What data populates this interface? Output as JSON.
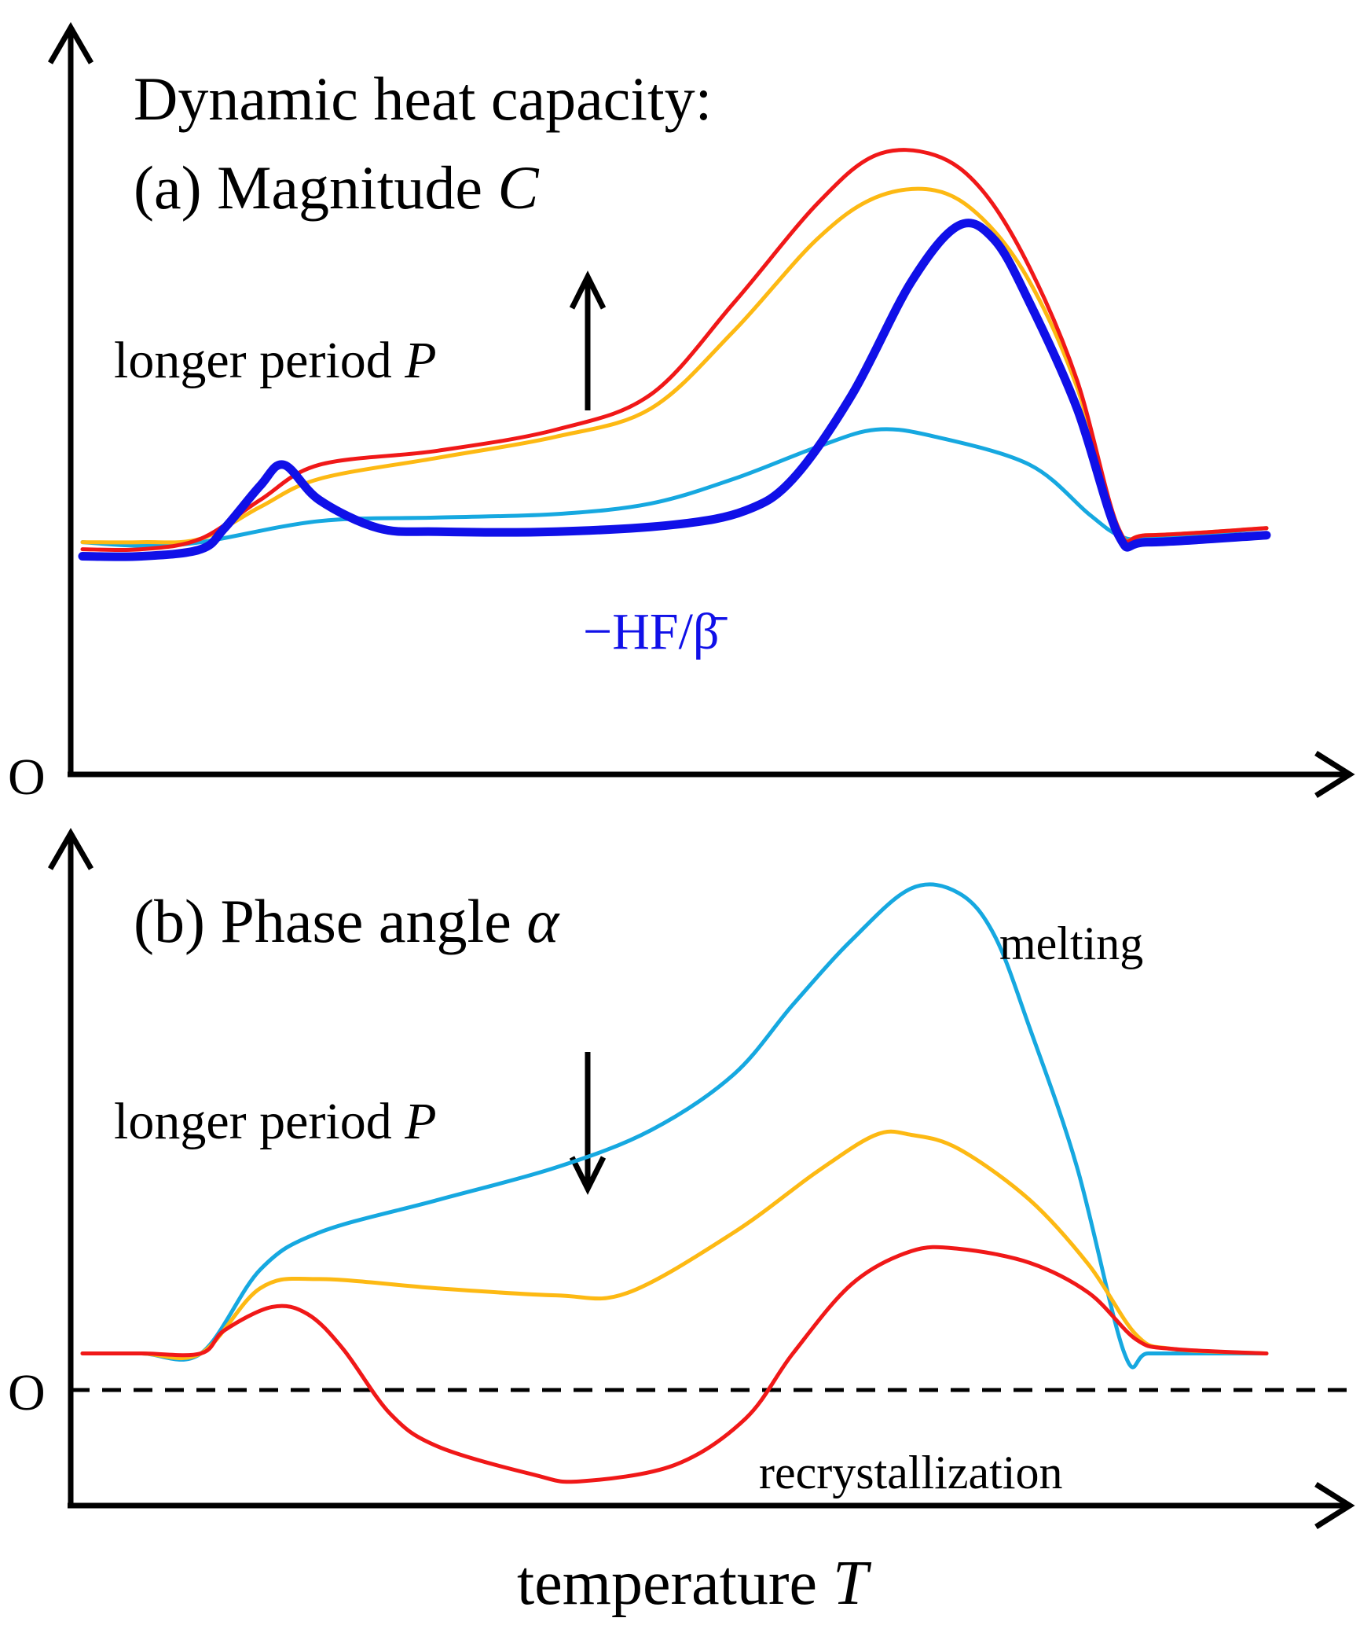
{
  "chart_data": [
    {
      "type": "line",
      "panel": "a",
      "title_line1": "Dynamic heat capacity:",
      "title_line2_prefix": "(a) Magnitude ",
      "title_line2_symbol": "C",
      "origin_label": "O",
      "arrow_label_prefix": "longer period ",
      "arrow_label_symbol": "P",
      "arrow_direction": "up",
      "hf_label": "−HF/β̄",
      "xlabel": "temperature T",
      "ylabel": "",
      "xlim": [
        0,
        100
      ],
      "ylim": [
        0,
        100
      ],
      "colors": {
        "red": "#f01818",
        "orange": "#fdb913",
        "lightblue": "#16a8e0",
        "blue": "#1010e8"
      },
      "series": [
        {
          "name": "lightblue",
          "color": "#16a8e0",
          "width": 5,
          "x": [
            0,
            5,
            10,
            20,
            30,
            40,
            48,
            55,
            62,
            67,
            72,
            80,
            85,
            87.5,
            90,
            100
          ],
          "y": [
            33,
            32.5,
            33,
            36,
            36.5,
            37,
            38.5,
            42,
            46.5,
            49,
            48,
            44,
            37,
            34,
            33.5,
            35
          ]
        },
        {
          "name": "orange",
          "color": "#fdb913",
          "width": 5,
          "x": [
            0,
            5,
            10,
            15,
            20,
            30,
            40,
            48,
            55,
            62,
            67,
            72,
            76,
            80,
            84,
            87.5,
            90,
            100
          ],
          "y": [
            33,
            33,
            33.5,
            38,
            42,
            45,
            48,
            52,
            63,
            76,
            82,
            83,
            79,
            70,
            55,
            35,
            34,
            35
          ]
        },
        {
          "name": "red",
          "color": "#f01818",
          "width": 5,
          "x": [
            0,
            5,
            10,
            15,
            20,
            30,
            40,
            48,
            55,
            62,
            67,
            72,
            76,
            80,
            84,
            87.5,
            90,
            100
          ],
          "y": [
            32,
            32,
            33.5,
            39,
            44,
            46,
            49,
            54,
            67,
            81,
            88,
            88,
            83,
            72,
            56,
            35,
            34,
            35
          ]
        },
        {
          "name": "blue",
          "color": "#1010e8",
          "width": 11,
          "x": [
            0,
            5,
            10,
            12,
            15,
            17,
            20,
            25,
            30,
            40,
            50,
            56,
            60,
            65,
            70,
            74,
            77,
            80,
            84,
            87.5,
            90,
            100
          ],
          "y": [
            31,
            31,
            32,
            35,
            41,
            44,
            39,
            35,
            34.5,
            34.5,
            35.5,
            37.5,
            42,
            54,
            70,
            78,
            76,
            67,
            52,
            34,
            33,
            34
          ]
        }
      ]
    },
    {
      "type": "line",
      "panel": "b",
      "title_prefix": "(b) Phase angle ",
      "title_symbol": "α",
      "origin_label": "O",
      "arrow_label_prefix": "longer period ",
      "arrow_label_symbol": "P",
      "arrow_direction": "down",
      "annotations": [
        "melting",
        "recrystallization"
      ],
      "xlabel_prefix": "temperature ",
      "xlabel_symbol": "T",
      "ylabel": "",
      "xlim": [
        0,
        100
      ],
      "ylim": [
        -30,
        100
      ],
      "zero_line": "dashed",
      "series": [
        {
          "name": "lightblue",
          "color": "#16a8e0",
          "width": 5,
          "x": [
            0,
            5,
            10,
            15,
            20,
            30,
            40,
            48,
            55,
            60,
            65,
            70,
            74,
            77,
            80,
            84,
            88,
            90,
            95,
            100
          ],
          "y": [
            0,
            0,
            0,
            18,
            26,
            33,
            40,
            48,
            60,
            75,
            89,
            100,
            99,
            90,
            70,
            40,
            0,
            0,
            0,
            0
          ]
        },
        {
          "name": "orange",
          "color": "#fdb913",
          "width": 5,
          "x": [
            0,
            5,
            10,
            15,
            20,
            30,
            40,
            46,
            55,
            62,
            67,
            70,
            74,
            80,
            85,
            89,
            92,
            100
          ],
          "y": [
            0,
            0,
            0,
            14,
            16,
            14,
            12.5,
            13,
            26,
            39,
            47,
            47,
            44,
            33,
            19,
            4,
            1,
            0
          ]
        },
        {
          "name": "red",
          "color": "#f01818",
          "width": 5,
          "x": [
            0,
            5,
            10,
            12,
            16,
            19,
            22,
            26,
            30,
            38,
            42,
            50,
            56,
            60,
            65,
            70,
            74,
            80,
            85,
            89,
            92,
            100
          ],
          "y": [
            0,
            0,
            0,
            5,
            10,
            8.5,
            1,
            -13,
            -20,
            -26,
            -27.5,
            -24,
            -14,
            0,
            15,
            22,
            22.5,
            19.5,
            13,
            3,
            1,
            0
          ]
        }
      ]
    }
  ]
}
